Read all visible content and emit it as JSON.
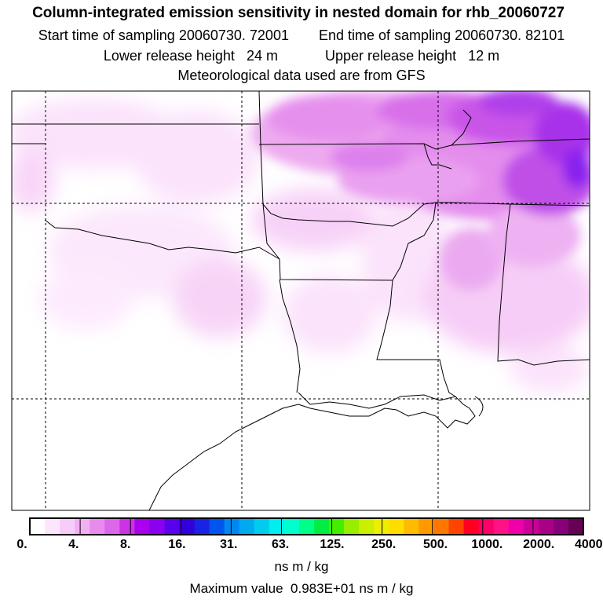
{
  "header": {
    "title": "Column-integrated emission sensitivity in nested domain for rhb_20060727",
    "start_label": "Start time of sampling 20060730. 72001",
    "end_label": "End time of sampling 20060730. 82101",
    "lower_label": "Lower release height",
    "lower_value": "24 m",
    "upper_label": "Upper release height",
    "upper_value": "12 m",
    "met_label": "Meteorological data used are from GFS"
  },
  "colorbar": {
    "labels": [
      "0.",
      "4.",
      "8.",
      "16.",
      "31.",
      "63.",
      "125.",
      "250.",
      "500.",
      "1000.",
      "2000.",
      "4000."
    ],
    "colors": [
      "#ffffff",
      "#fde6fd",
      "#f8ccf8",
      "#f2b0f3",
      "#e98aee",
      "#dd66ea",
      "#cc33e6",
      "#aa00ee",
      "#8a00f0",
      "#5a00ee",
      "#3300dd",
      "#1a22e6",
      "#0055ee",
      "#0088f0",
      "#00aaf0",
      "#00ccee",
      "#00eeee",
      "#00ffcc",
      "#00ff88",
      "#00ee44",
      "#44ee00",
      "#99ee00",
      "#ccee00",
      "#eeee00",
      "#ffdd00",
      "#ffbb00",
      "#ff9900",
      "#ff7700",
      "#ff4400",
      "#ff0022",
      "#ff0066",
      "#ff1188",
      "#ee00aa",
      "#cc0099",
      "#aa0088",
      "#880077",
      "#660055"
    ],
    "units": "ns m / kg"
  },
  "footer": {
    "max_label": "Maximum value",
    "max_value": "0.983E+01 ns m / kg"
  }
}
